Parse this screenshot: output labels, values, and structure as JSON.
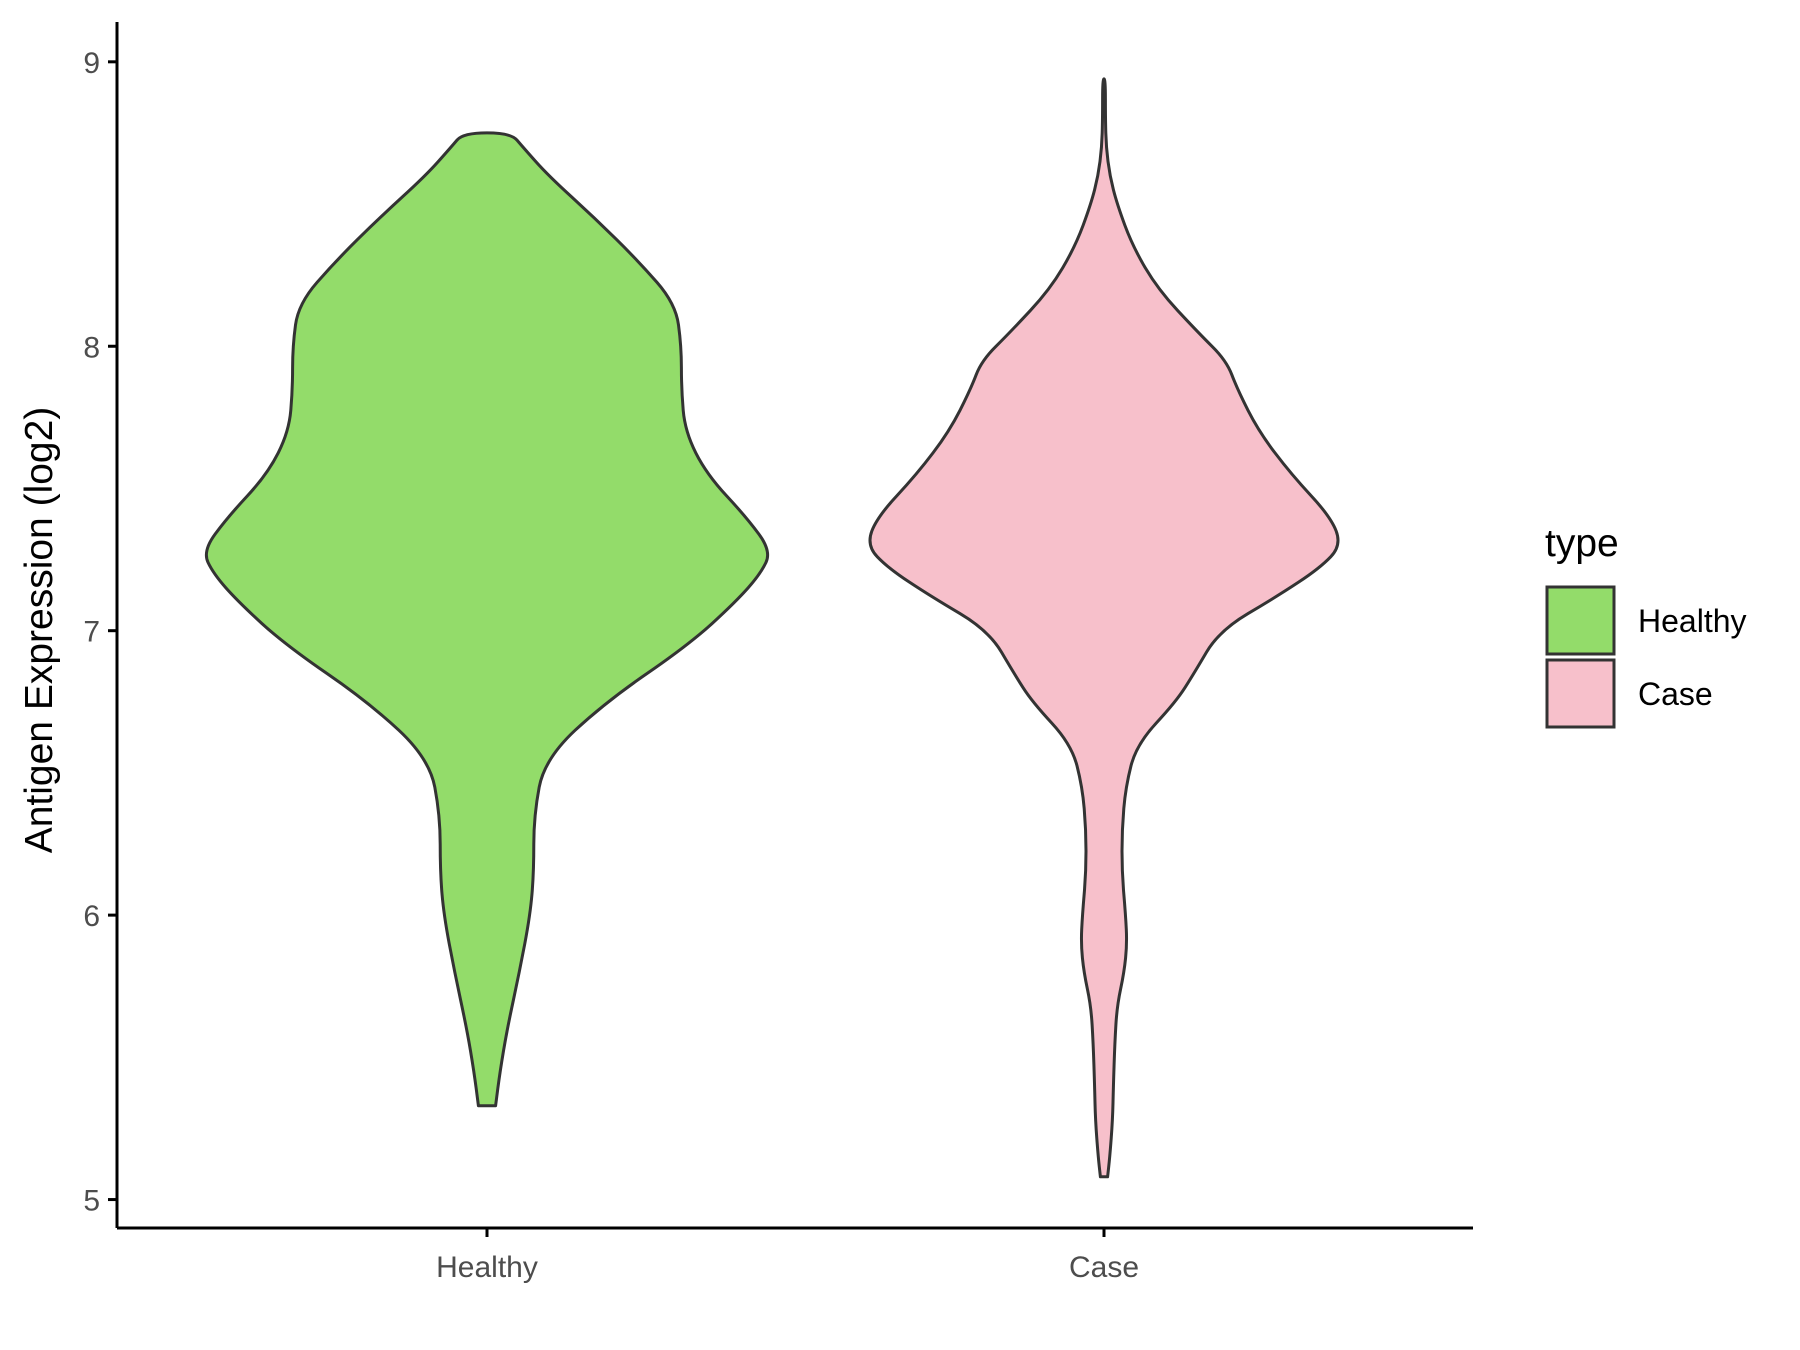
{
  "chart_data": {
    "type": "violin",
    "title": "",
    "xlabel": "",
    "ylabel": "Antigen Expression (log2)",
    "ylim": [
      4.9,
      9.14
    ],
    "yticks": [
      5,
      6,
      7,
      8,
      9
    ],
    "categories": [
      "Healthy",
      "Case"
    ],
    "grid": false,
    "legend": {
      "title": "type",
      "position": "right",
      "entries": [
        {
          "label": "Healthy",
          "color": "#93DC6A"
        },
        {
          "label": "Case",
          "color": "#F7C0CB"
        }
      ]
    },
    "series": [
      {
        "category": "Healthy",
        "color": "#93DC6A",
        "min": 5.33,
        "max": 8.75,
        "density": [
          [
            5.33,
            0.012
          ],
          [
            5.45,
            0.018
          ],
          [
            5.6,
            0.028
          ],
          [
            5.8,
            0.045
          ],
          [
            6.0,
            0.06
          ],
          [
            6.15,
            0.065
          ],
          [
            6.35,
            0.065
          ],
          [
            6.55,
            0.08
          ],
          [
            6.75,
            0.165
          ],
          [
            6.95,
            0.28
          ],
          [
            7.1,
            0.345
          ],
          [
            7.2,
            0.38
          ],
          [
            7.28,
            0.395
          ],
          [
            7.4,
            0.36
          ],
          [
            7.55,
            0.305
          ],
          [
            7.7,
            0.275
          ],
          [
            7.85,
            0.27
          ],
          [
            8.0,
            0.27
          ],
          [
            8.15,
            0.262
          ],
          [
            8.3,
            0.21
          ],
          [
            8.45,
            0.15
          ],
          [
            8.6,
            0.085
          ],
          [
            8.7,
            0.05
          ],
          [
            8.75,
            0.033
          ]
        ]
      },
      {
        "category": "Case",
        "color": "#F7C0CB",
        "min": 5.08,
        "max": 8.94,
        "density": [
          [
            5.08,
            0.005
          ],
          [
            5.15,
            0.008
          ],
          [
            5.28,
            0.012
          ],
          [
            5.4,
            0.013
          ],
          [
            5.55,
            0.015
          ],
          [
            5.68,
            0.018
          ],
          [
            5.8,
            0.028
          ],
          [
            5.9,
            0.032
          ],
          [
            6.0,
            0.03
          ],
          [
            6.15,
            0.025
          ],
          [
            6.3,
            0.025
          ],
          [
            6.45,
            0.03
          ],
          [
            6.6,
            0.045
          ],
          [
            6.75,
            0.1
          ],
          [
            6.85,
            0.125
          ],
          [
            7.0,
            0.16
          ],
          [
            7.12,
            0.24
          ],
          [
            7.22,
            0.3
          ],
          [
            7.3,
            0.33
          ],
          [
            7.4,
            0.315
          ],
          [
            7.55,
            0.26
          ],
          [
            7.7,
            0.215
          ],
          [
            7.85,
            0.185
          ],
          [
            7.95,
            0.17
          ],
          [
            8.05,
            0.13
          ],
          [
            8.2,
            0.075
          ],
          [
            8.35,
            0.04
          ],
          [
            8.5,
            0.018
          ],
          [
            8.6,
            0.008
          ],
          [
            8.7,
            0.003
          ],
          [
            8.8,
            0.002
          ],
          [
            8.94,
            0.002
          ]
        ]
      }
    ]
  },
  "colors": {
    "outline": "#333333",
    "axis": "#000000",
    "tick_text": "#4d4d4d"
  }
}
